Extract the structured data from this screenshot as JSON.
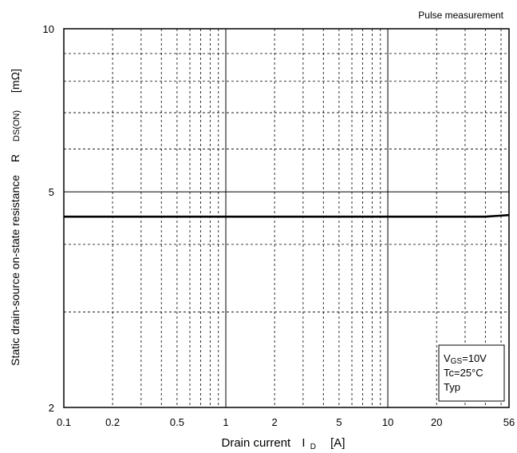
{
  "chart_data": {
    "type": "line",
    "x_scale": "log",
    "y_scale": "log",
    "xlim": [
      0.1,
      56
    ],
    "ylim": [
      2,
      10
    ],
    "grid": true,
    "annotation": "Pulse measurement",
    "xlabel": {
      "text": "Drain current",
      "symbol": "I",
      "subscript": "D",
      "unit": "[A]"
    },
    "ylabel": {
      "text": "Static drain-source on-state resistance",
      "symbol": "R",
      "subscript": "DS(ON)",
      "unit": "[mΩ]"
    },
    "x_ticks": [
      {
        "value": 0.1,
        "label": "0.1"
      },
      {
        "value": 0.2,
        "label": "0.2"
      },
      {
        "value": 0.5,
        "label": "0.5"
      },
      {
        "value": 1,
        "label": "1"
      },
      {
        "value": 2,
        "label": "2"
      },
      {
        "value": 5,
        "label": "5"
      },
      {
        "value": 10,
        "label": "10"
      },
      {
        "value": 20,
        "label": "20"
      },
      {
        "value": 56,
        "label": "56"
      }
    ],
    "y_ticks": [
      {
        "value": 2,
        "label": "2"
      },
      {
        "value": 5,
        "label": "5"
      },
      {
        "value": 10,
        "label": "10"
      }
    ],
    "x_grid": [
      0.2,
      0.3,
      0.4,
      0.5,
      0.6,
      0.7,
      0.8,
      0.9,
      1,
      2,
      3,
      4,
      5,
      6,
      7,
      8,
      9,
      10,
      20,
      30,
      40,
      50
    ],
    "x_major_grid": [
      1,
      10
    ],
    "y_grid": [
      3,
      4,
      5,
      6,
      7,
      8,
      9
    ],
    "y_major_grid": [
      5
    ],
    "legend": {
      "conditions": [
        {
          "symbol": "V",
          "subscript": "GS",
          "text": "=10V"
        },
        {
          "symbol": "Tc",
          "subscript": "",
          "text": "=25°C"
        },
        {
          "symbol": "Typ",
          "subscript": "",
          "text": ""
        }
      ]
    },
    "series": [
      {
        "x": [
          0.1,
          0.2,
          0.5,
          1,
          2,
          5,
          10,
          20,
          30,
          40,
          50,
          56
        ],
        "y": [
          4.5,
          4.5,
          4.5,
          4.5,
          4.5,
          4.5,
          4.5,
          4.5,
          4.5,
          4.5,
          4.52,
          4.53
        ]
      }
    ]
  }
}
